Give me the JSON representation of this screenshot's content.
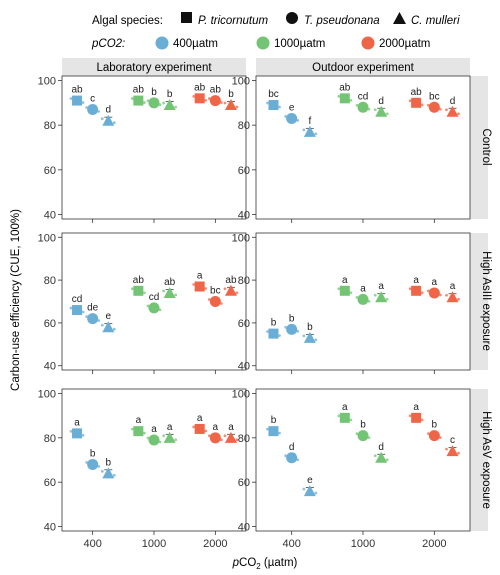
{
  "legend": {
    "species_title": "Algal species:",
    "species": [
      {
        "label": "P. tricornutum",
        "shape": "square"
      },
      {
        "label": "T. pseudonana",
        "shape": "circle"
      },
      {
        "label": "C. mulleri",
        "shape": "triangle"
      }
    ],
    "pco2_title": "pCO2:",
    "levels": [
      {
        "label": "400µatm",
        "color": "#6aaed6"
      },
      {
        "label": "1000µatm",
        "color": "#74c476"
      },
      {
        "label": "2000µatm",
        "color": "#ef6548"
      }
    ]
  },
  "column_titles": [
    "Laboratory experiment",
    "Outdoor experiment"
  ],
  "row_titles": [
    "Control",
    "High AsIII exposure",
    "High AsV exposure"
  ],
  "axis": {
    "ylabel": "Carbon-use efficiency (CUE, 100%)",
    "xlabel": "pCO2 (µatm)",
    "yticks": [
      40,
      60,
      80,
      100
    ],
    "xticks": [
      "400",
      "1000",
      "2000"
    ]
  },
  "chart_data": {
    "type": "scatter",
    "ylim": [
      38,
      102
    ],
    "categories": [
      "400",
      "1000",
      "2000"
    ],
    "species_order": [
      "P. tricornutum",
      "T. pseudonana",
      "C. mulleri"
    ],
    "panels": [
      {
        "row": "Control",
        "column": "Laboratory experiment",
        "means": [
          [
            91,
            87,
            82
          ],
          [
            91,
            90,
            89
          ],
          [
            92,
            91,
            89
          ]
        ],
        "letters": [
          [
            "ab",
            "c",
            "d"
          ],
          [
            "ab",
            "b",
            "b"
          ],
          [
            "ab",
            "ab",
            "b"
          ]
        ]
      },
      {
        "row": "Control",
        "column": "Outdoor experiment",
        "means": [
          [
            89,
            83,
            77
          ],
          [
            92,
            88,
            86
          ],
          [
            90,
            88,
            86
          ]
        ],
        "letters": [
          [
            "bc",
            "e",
            "f"
          ],
          [
            "ab",
            "cd",
            "d"
          ],
          [
            "ab",
            "bc",
            "d"
          ]
        ]
      },
      {
        "row": "High AsIII exposure",
        "column": "Laboratory experiment",
        "means": [
          [
            66,
            62,
            58
          ],
          [
            75,
            67,
            74
          ],
          [
            77,
            70,
            75
          ]
        ],
        "letters": [
          [
            "cd",
            "de",
            "e"
          ],
          [
            "ab",
            "cd",
            "ab"
          ],
          [
            "a",
            "bc",
            "ab"
          ]
        ]
      },
      {
        "row": "High AsIII exposure",
        "column": "Outdoor experiment",
        "means": [
          [
            55,
            57,
            53
          ],
          [
            75,
            71,
            72
          ],
          [
            75,
            74,
            72
          ]
        ],
        "letters": [
          [
            "b",
            "b",
            "b"
          ],
          [
            "a",
            "a",
            "a"
          ],
          [
            "a",
            "a",
            "a"
          ]
        ]
      },
      {
        "row": "High AsV exposure",
        "column": "Laboratory experiment",
        "means": [
          [
            82,
            68,
            64
          ],
          [
            83,
            79,
            80
          ],
          [
            84,
            80,
            80
          ]
        ],
        "letters": [
          [
            "a",
            "b",
            "b"
          ],
          [
            "a",
            "a",
            "a"
          ],
          [
            "a",
            "a",
            "a"
          ]
        ]
      },
      {
        "row": "High AsV exposure",
        "column": "Outdoor experiment",
        "means": [
          [
            83,
            71,
            56
          ],
          [
            89,
            81,
            71
          ],
          [
            89,
            81,
            74
          ]
        ],
        "letters": [
          [
            "b",
            "d",
            "e"
          ],
          [
            "a",
            "b",
            "d"
          ],
          [
            "a",
            "b",
            "c"
          ]
        ]
      }
    ]
  }
}
